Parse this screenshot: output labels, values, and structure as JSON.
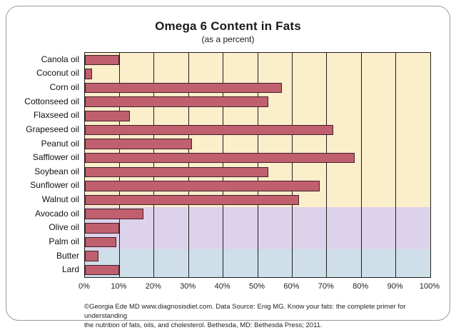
{
  "title": "Omega 6 Content in Fats",
  "subtitle": "(as a percent)",
  "chart_data": {
    "type": "bar",
    "orientation": "horizontal",
    "title": "Omega 6 Content in Fats",
    "subtitle": "(as a percent)",
    "categories": [
      "Canola oil",
      "Coconut oil",
      "Corn oil",
      "Cottonseed oil",
      "Flaxseed oil",
      "Grapeseed oil",
      "Peanut oil",
      "Safflower oil",
      "Soybean oil",
      "Sunflower oil",
      "Walnut oil",
      "Avocado oil",
      "Olive oil",
      "Palm oil",
      "Butter",
      "Lard"
    ],
    "values": [
      10,
      2,
      57,
      53,
      13,
      72,
      31,
      78,
      53,
      68,
      62,
      17,
      10,
      9,
      4,
      10
    ],
    "xlabel": "",
    "ylabel": "",
    "xlim": [
      0,
      100
    ],
    "x_tick_step": 10,
    "x_tick_labels": [
      "0%",
      "10%",
      "20%",
      "30%",
      "40%",
      "50%",
      "60%",
      "70%",
      "80%",
      "90%",
      "100%"
    ],
    "grid": "vertical",
    "legend_position": "none",
    "bar_color": "#c05f6e",
    "bar_border_color": "#43202a",
    "background_bands": [
      {
        "color": "#fbeecb",
        "row_start": 0,
        "row_end": 10
      },
      {
        "color": "#ddd2eb",
        "row_start": 11,
        "row_end": 13
      },
      {
        "color": "#cedfe9",
        "row_start": 14,
        "row_end": 15
      }
    ]
  },
  "footer": {
    "line1": "©Georgia Ede MD www.diagnosisdiet.com. Data Source: Enig MG. Know your fats: the complete primer for understanding",
    "line2": "the nutrition of fats, oils, and cholesterol. Bethesda, MD: Bethesda Press; 2011."
  }
}
